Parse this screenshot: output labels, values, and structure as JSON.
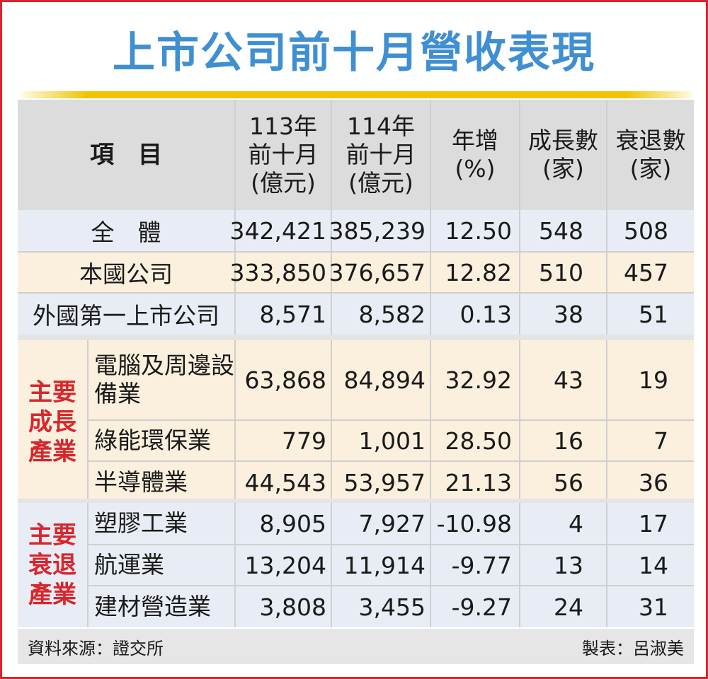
{
  "title": "上市公司前十月營收表現",
  "headers": {
    "item": "項　目",
    "col_113": [
      "113年",
      "前十月",
      "(億元)"
    ],
    "col_114": [
      "114年",
      "前十月",
      "(億元)"
    ],
    "yoy": [
      "年增",
      "(%)"
    ],
    "growth": [
      "成長數",
      "(家)"
    ],
    "decline": [
      "衰退數",
      "(家)"
    ]
  },
  "summary_rows": [
    {
      "label": "全　體",
      "v113": "342,421",
      "v114": "385,239",
      "yoy": "12.50",
      "growth": "548",
      "decline": "508"
    },
    {
      "label": "本國公司",
      "v113": "333,850",
      "v114": "376,657",
      "yoy": "12.82",
      "growth": "510",
      "decline": "457"
    },
    {
      "label": "外國第一上市公司",
      "v113": "8,571",
      "v114": "8,582",
      "yoy": "0.13",
      "growth": "38",
      "decline": "51"
    }
  ],
  "groups": [
    {
      "label": [
        "主要",
        "成長",
        "產業"
      ],
      "rows": [
        {
          "label": "電腦及周邊設備業",
          "v113": "63,868",
          "v114": "84,894",
          "yoy": "32.92",
          "growth": "43",
          "decline": "19"
        },
        {
          "label": "綠能環保業",
          "v113": "779",
          "v114": "1,001",
          "yoy": "28.50",
          "growth": "16",
          "decline": "7"
        },
        {
          "label": "半導體業",
          "v113": "44,543",
          "v114": "53,957",
          "yoy": "21.13",
          "growth": "56",
          "decline": "36"
        }
      ]
    },
    {
      "label": [
        "主要",
        "衰退",
        "產業"
      ],
      "rows": [
        {
          "label": "塑膠工業",
          "v113": "8,905",
          "v114": "7,927",
          "yoy": "-10.98",
          "growth": "4",
          "decline": "17"
        },
        {
          "label": "航運業",
          "v113": "13,204",
          "v114": "11,914",
          "yoy": "-9.77",
          "growth": "13",
          "decline": "14"
        },
        {
          "label": "建材營造業",
          "v113": "3,808",
          "v114": "3,455",
          "yoy": "-9.27",
          "growth": "24",
          "decline": "31"
        }
      ]
    }
  ],
  "footer": {
    "source": "資料來源：證交所",
    "maker": "製表：呂淑美"
  },
  "colors": {
    "title": "#3f8fd2",
    "group_label": "#d8262c",
    "border": "#d8262c",
    "header_bg": "#dcdcdc",
    "blue_row": "#e8edf5",
    "cream_row": "#fbf0dd"
  },
  "chart_data": {
    "type": "table",
    "title": "上市公司前十月營收表現",
    "columns": [
      "項目",
      "113年前十月(億元)",
      "114年前十月(億元)",
      "年增(%)",
      "成長數(家)",
      "衰退數(家)"
    ],
    "rows": [
      [
        "全體",
        342421,
        385239,
        12.5,
        548,
        508
      ],
      [
        "本國公司",
        333850,
        376657,
        12.82,
        510,
        457
      ],
      [
        "外國第一上市公司",
        8571,
        8582,
        0.13,
        38,
        51
      ],
      [
        "主要成長產業 / 電腦及周邊設備業",
        63868,
        84894,
        32.92,
        43,
        19
      ],
      [
        "主要成長產業 / 綠能環保業",
        779,
        1001,
        28.5,
        16,
        7
      ],
      [
        "主要成長產業 / 半導體業",
        44543,
        53957,
        21.13,
        56,
        36
      ],
      [
        "主要衰退產業 / 塑膠工業",
        8905,
        7927,
        -10.98,
        4,
        17
      ],
      [
        "主要衰退產業 / 航運業",
        13204,
        11914,
        -9.77,
        13,
        14
      ],
      [
        "主要衰退產業 / 建材營造業",
        3808,
        3455,
        -9.27,
        24,
        31
      ]
    ]
  }
}
